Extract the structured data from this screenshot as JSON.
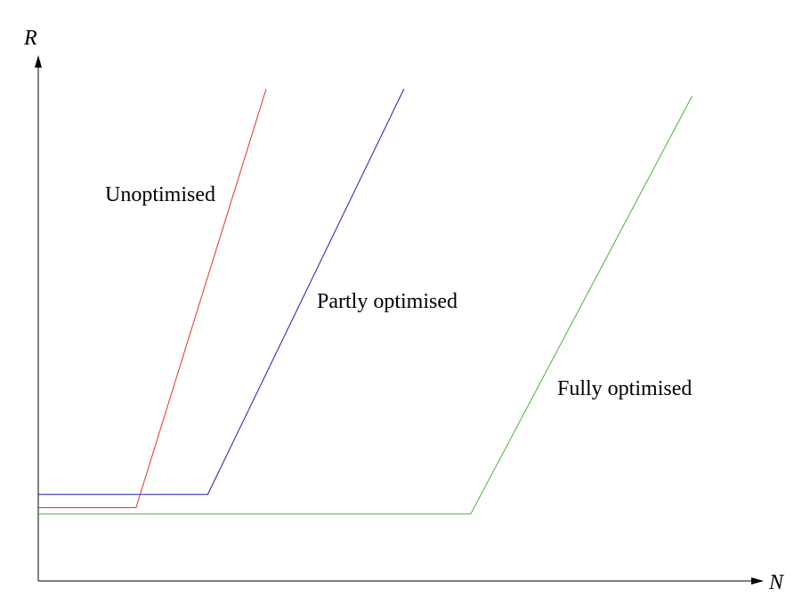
{
  "chart_data": {
    "type": "line",
    "title": "",
    "xlabel": "N",
    "ylabel": "R",
    "xlim": [
      0,
      100
    ],
    "ylim": [
      0,
      100
    ],
    "grid": false,
    "legend": "none",
    "tick_labels": false,
    "series": [
      {
        "name": "Unoptimised",
        "color": "#e8321e",
        "x": [
          0,
          13.9,
          32.4
        ],
        "y": [
          14.9,
          14.9,
          100
        ]
      },
      {
        "name": "Partly optimised",
        "color": "#1c1cb5",
        "x": [
          0,
          24.1,
          52.0
        ],
        "y": [
          17.6,
          17.6,
          100
        ]
      },
      {
        "name": "Fully optimised",
        "color": "#4cb23a",
        "x": [
          0,
          61.5,
          93.0
        ],
        "y": [
          13.6,
          13.6,
          98.6
        ]
      }
    ]
  }
}
